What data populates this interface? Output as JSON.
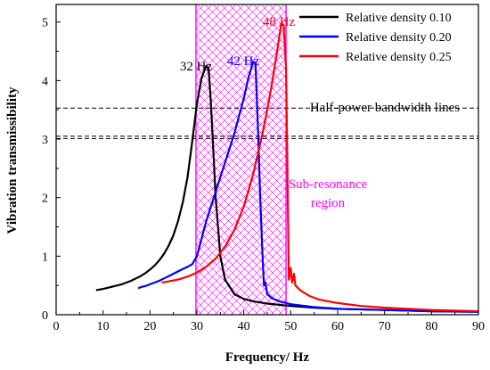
{
  "chart_data": {
    "type": "line",
    "xlabel": "Frequency/ Hz",
    "ylabel": "Vibration transmissibility",
    "xlim": [
      0,
      90
    ],
    "ylim": [
      0,
      5.3
    ],
    "xticks": [
      0,
      10,
      20,
      30,
      40,
      50,
      60,
      70,
      80,
      90
    ],
    "yticks": [
      0,
      1,
      2,
      3,
      4,
      5
    ],
    "legend_position": "top-right",
    "series": [
      {
        "name": "Relative density 0.10",
        "color": "#000000",
        "x": [
          8.5,
          10,
          11,
          12,
          13,
          14,
          15,
          16,
          17,
          18,
          19,
          20,
          21,
          22,
          23,
          24,
          25,
          26,
          27,
          28,
          29,
          30,
          31,
          32,
          32.5,
          33,
          34,
          35,
          36,
          38,
          40,
          42,
          45,
          50,
          55,
          60,
          70,
          80,
          90
        ],
        "y": [
          0.42,
          0.44,
          0.46,
          0.48,
          0.5,
          0.52,
          0.55,
          0.58,
          0.62,
          0.66,
          0.71,
          0.77,
          0.84,
          0.93,
          1.04,
          1.18,
          1.36,
          1.6,
          1.92,
          2.35,
          2.95,
          3.6,
          4.05,
          4.25,
          4.2,
          3.6,
          2.0,
          1.0,
          0.6,
          0.35,
          0.27,
          0.23,
          0.19,
          0.15,
          0.12,
          0.1,
          0.08,
          0.06,
          0.05
        ]
      },
      {
        "name": "Relative density 0.20",
        "color": "#0000ff",
        "x": [
          17.5,
          18,
          19,
          20,
          21,
          22,
          23,
          24,
          25,
          26,
          27,
          28,
          29,
          30,
          31,
          32,
          33,
          34,
          35,
          36,
          37,
          38,
          39,
          40,
          41,
          42,
          42.5,
          43,
          43.5,
          44,
          44.3,
          44.6,
          45,
          46,
          48,
          50,
          55,
          60,
          70,
          80,
          90
        ],
        "y": [
          0.45,
          0.47,
          0.49,
          0.52,
          0.55,
          0.58,
          0.62,
          0.66,
          0.7,
          0.74,
          0.78,
          0.82,
          0.86,
          1.0,
          1.3,
          1.6,
          1.85,
          2.1,
          2.35,
          2.6,
          2.85,
          3.1,
          3.4,
          3.7,
          4.05,
          4.32,
          4.3,
          3.2,
          2.0,
          1.0,
          0.5,
          0.55,
          0.35,
          0.28,
          0.22,
          0.18,
          0.13,
          0.1,
          0.08,
          0.06,
          0.05
        ]
      },
      {
        "name": "Relative density 0.25",
        "color": "#ff0000",
        "x": [
          22.5,
          24,
          26,
          28,
          30,
          32,
          34,
          36,
          38,
          40,
          42,
          44,
          45,
          46,
          47,
          48,
          48.5,
          49,
          49.3,
          49.6,
          50,
          50.3,
          50.7,
          51,
          52,
          54,
          56,
          60,
          65,
          70,
          80,
          90
        ],
        "y": [
          0.55,
          0.57,
          0.6,
          0.65,
          0.72,
          0.82,
          0.96,
          1.16,
          1.45,
          1.85,
          2.4,
          3.1,
          3.5,
          3.95,
          4.45,
          4.98,
          4.95,
          4.2,
          2.5,
          0.6,
          0.8,
          0.55,
          0.7,
          0.5,
          0.42,
          0.32,
          0.26,
          0.2,
          0.15,
          0.12,
          0.08,
          0.06
        ]
      }
    ],
    "reference_lines": {
      "label": "Half-power bandwidth lines",
      "y": [
        3.01,
        3.05,
        3.53
      ]
    },
    "region": {
      "label_line1": "Sub-resonance",
      "label_line2": "region",
      "x_range": [
        29.8,
        49.0
      ],
      "color": "#ff00ff"
    },
    "peak_labels": [
      {
        "text": "32 Hz",
        "x": 32,
        "y": 4.25,
        "color": "#000000"
      },
      {
        "text": "42 Hz",
        "x": 42,
        "y": 4.32,
        "color": "#0000ff"
      },
      {
        "text": "48 Hz",
        "x": 48,
        "y": 4.98,
        "color": "#ff0000"
      }
    ]
  }
}
